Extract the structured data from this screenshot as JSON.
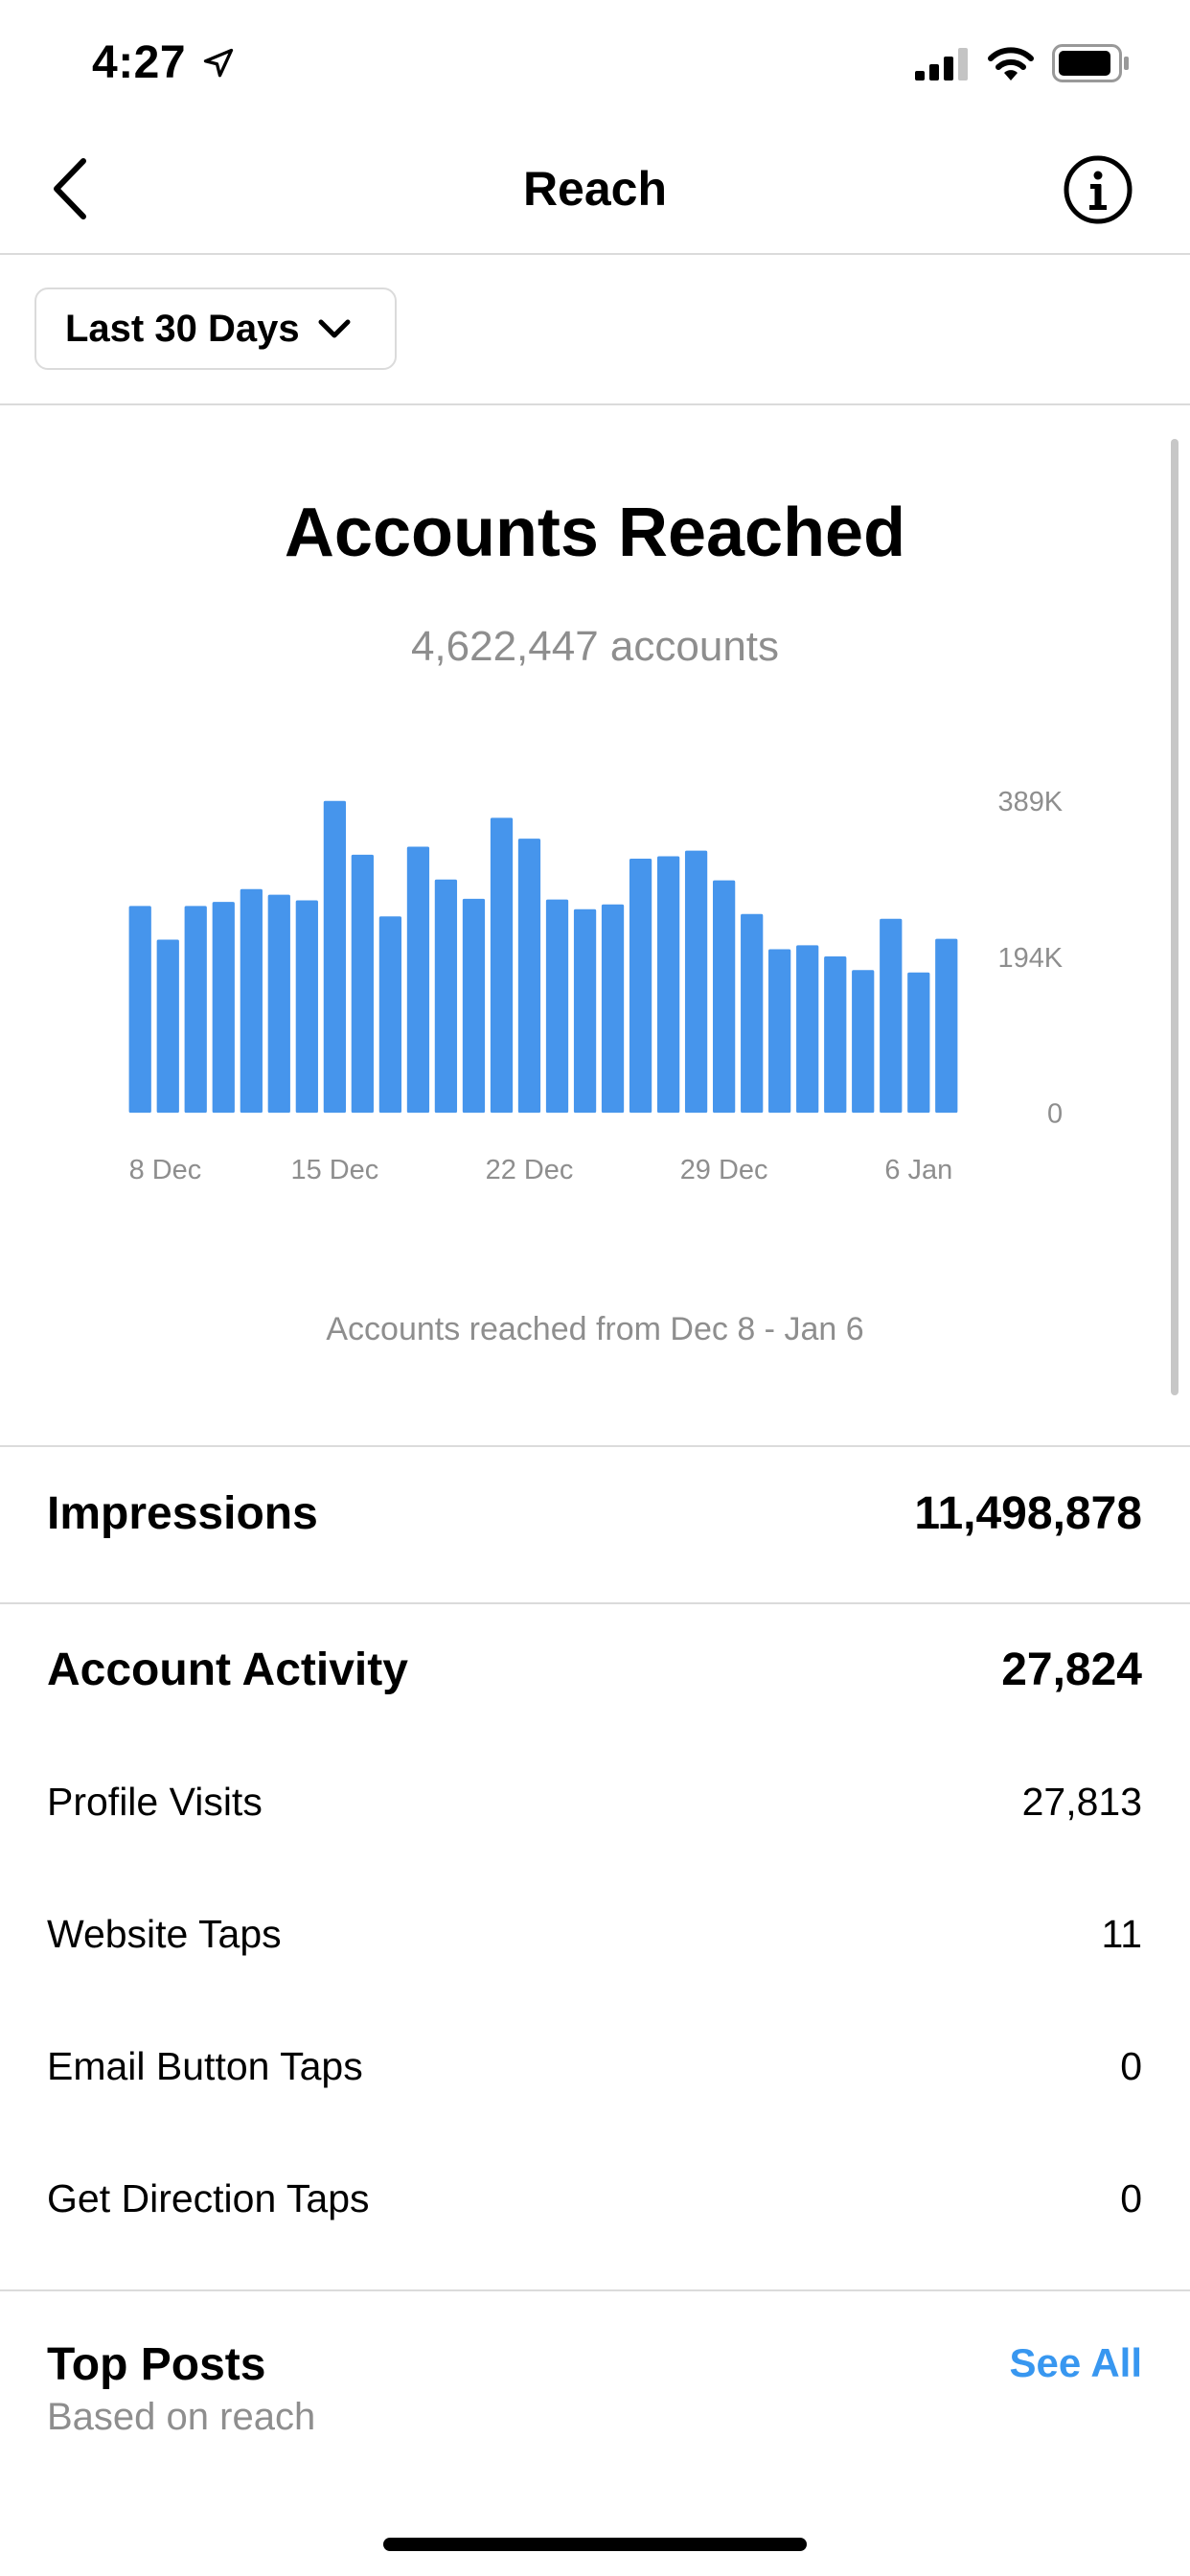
{
  "status_bar": {
    "time": "4:27"
  },
  "header": {
    "title": "Reach"
  },
  "filter": {
    "label": "Last 30 Days"
  },
  "reach": {
    "title": "Accounts Reached",
    "subtitle": "4,622,447 accounts",
    "caption": "Accounts reached from Dec 8 - Jan 6"
  },
  "chart_data": {
    "type": "bar",
    "title": "",
    "xlabel": "",
    "ylabel": "",
    "ylim": [
      0,
      389000
    ],
    "y_ticks": [
      "389K",
      "194K",
      "0"
    ],
    "y_tick_values": [
      389000,
      194000,
      0
    ],
    "x_tick_labels": [
      "8 Dec",
      "15 Dec",
      "22 Dec",
      "29 Dec",
      "6 Jan"
    ],
    "x_tick_indices": [
      0,
      7,
      14,
      21,
      28
    ],
    "categories": [
      "Dec 8",
      "Dec 9",
      "Dec 10",
      "Dec 11",
      "Dec 12",
      "Dec 13",
      "Dec 14",
      "Dec 15",
      "Dec 16",
      "Dec 17",
      "Dec 18",
      "Dec 19",
      "Dec 20",
      "Dec 21",
      "Dec 22",
      "Dec 23",
      "Dec 24",
      "Dec 25",
      "Dec 26",
      "Dec 27",
      "Dec 28",
      "Dec 29",
      "Dec 30",
      "Dec 31",
      "Jan 1",
      "Jan 2",
      "Jan 3",
      "Jan 4",
      "Jan 5",
      "Jan 6"
    ],
    "values": [
      258000,
      216000,
      258000,
      263000,
      279000,
      272000,
      265000,
      389000,
      322000,
      245000,
      332000,
      291000,
      267000,
      368000,
      342000,
      266000,
      254000,
      260000,
      317000,
      320000,
      327000,
      290000,
      248000,
      204000,
      209000,
      195000,
      178000,
      242000,
      175000,
      217000
    ],
    "bar_color": "#4695ec",
    "grid": false
  },
  "impressions": {
    "label": "Impressions",
    "value": "11,498,878"
  },
  "account_activity": {
    "label": "Account Activity",
    "value": "27,824",
    "items": [
      {
        "label": "Profile Visits",
        "value": "27,813"
      },
      {
        "label": "Website Taps",
        "value": "11"
      },
      {
        "label": "Email Button Taps",
        "value": "0"
      },
      {
        "label": "Get Direction Taps",
        "value": "0"
      }
    ]
  },
  "top_posts": {
    "title": "Top Posts",
    "subtitle": "Based on reach",
    "see_all": "See All"
  },
  "colors": {
    "accent": "#3897f0",
    "bar": "#4695ec",
    "muted": "#8e8e8e",
    "divider": "#dbdbdb"
  }
}
